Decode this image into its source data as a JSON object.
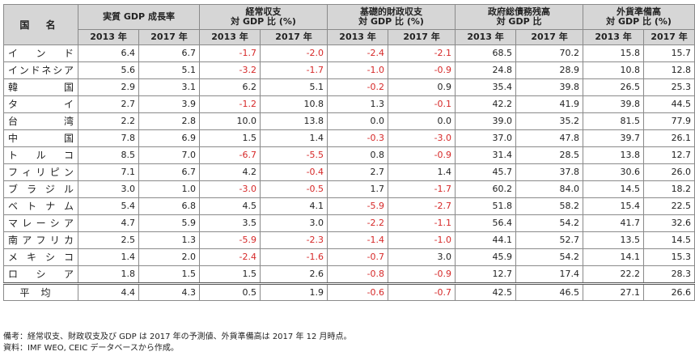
{
  "header": {
    "country_label": "国 名",
    "groups": [
      {
        "label": "実質 GDP 成長率"
      },
      {
        "label": "経常収支\n対 GDP 比 (%)"
      },
      {
        "label": "基礎的財政収支\n対 GDP 比 (%)"
      },
      {
        "label": "政府総債務残高\n対 GDP 比"
      },
      {
        "label": "外貨準備高\n対 GDP 比 (%)"
      }
    ],
    "years": [
      "2013 年",
      "2017 年"
    ]
  },
  "rows": [
    {
      "country": "インド",
      "values": [
        "6.4",
        "6.7",
        "-1.7",
        "-2.0",
        "-2.4",
        "-2.1",
        "68.5",
        "70.2",
        "15.8",
        "15.7"
      ]
    },
    {
      "country": "インドネシア",
      "values": [
        "5.6",
        "5.1",
        "-3.2",
        "-1.7",
        "-1.0",
        "-0.9",
        "24.8",
        "28.9",
        "10.8",
        "12.8"
      ]
    },
    {
      "country": "韓国",
      "values": [
        "2.9",
        "3.1",
        "6.2",
        "5.1",
        "-0.2",
        "0.9",
        "35.4",
        "39.8",
        "26.5",
        "25.3"
      ]
    },
    {
      "country": "タイ",
      "values": [
        "2.7",
        "3.9",
        "-1.2",
        "10.8",
        "1.3",
        "-0.1",
        "42.2",
        "41.9",
        "39.8",
        "44.5"
      ]
    },
    {
      "country": "台湾",
      "values": [
        "2.2",
        "2.8",
        "10.0",
        "13.8",
        "0.0",
        "0.0",
        "39.0",
        "35.2",
        "81.5",
        "77.9"
      ]
    },
    {
      "country": "中国",
      "values": [
        "7.8",
        "6.9",
        "1.5",
        "1.4",
        "-0.3",
        "-3.0",
        "37.0",
        "47.8",
        "39.7",
        "26.1"
      ]
    },
    {
      "country": "トルコ",
      "values": [
        "8.5",
        "7.0",
        "-6.7",
        "-5.5",
        "0.8",
        "-0.9",
        "31.4",
        "28.5",
        "13.8",
        "12.7"
      ]
    },
    {
      "country": "フィリピン",
      "values": [
        "7.1",
        "6.7",
        "4.2",
        "-0.4",
        "2.7",
        "1.4",
        "45.7",
        "37.8",
        "30.6",
        "26.0"
      ]
    },
    {
      "country": "ブラジル",
      "values": [
        "3.0",
        "1.0",
        "-3.0",
        "-0.5",
        "1.7",
        "-1.7",
        "60.2",
        "84.0",
        "14.5",
        "18.2"
      ]
    },
    {
      "country": "ベトナム",
      "values": [
        "5.4",
        "6.8",
        "4.5",
        "4.1",
        "-5.9",
        "-2.7",
        "51.8",
        "58.2",
        "15.4",
        "22.5"
      ]
    },
    {
      "country": "マレーシア",
      "values": [
        "4.7",
        "5.9",
        "3.5",
        "3.0",
        "-2.2",
        "-1.1",
        "56.4",
        "54.2",
        "41.7",
        "32.6"
      ]
    },
    {
      "country": "南アフリカ",
      "values": [
        "2.5",
        "1.3",
        "-5.9",
        "-2.3",
        "-1.4",
        "-1.0",
        "44.1",
        "52.7",
        "13.5",
        "14.5"
      ]
    },
    {
      "country": "メキシコ",
      "values": [
        "1.4",
        "2.0",
        "-2.4",
        "-1.6",
        "-0.7",
        "3.0",
        "45.9",
        "54.2",
        "14.1",
        "15.3"
      ]
    },
    {
      "country": "ロシア",
      "values": [
        "1.8",
        "1.5",
        "1.5",
        "2.6",
        "-0.8",
        "-0.9",
        "12.7",
        "17.4",
        "22.2",
        "28.3"
      ]
    }
  ],
  "average": {
    "country": "平均",
    "values": [
      "4.4",
      "4.3",
      "0.5",
      "1.9",
      "-0.6",
      "-0.7",
      "42.5",
      "46.5",
      "27.1",
      "26.6"
    ]
  },
  "notes": [
    "備考：経常収支、財政収支及び GDP は 2017 年の予測値、外貨準備高は 2017 年 12 月時点。",
    "資料：IMF WEO, CEIC データベースから作成。"
  ],
  "colors": {
    "header_bg": "#d6d6d6",
    "negative": "#d62828",
    "border": "#8a8a8a"
  }
}
